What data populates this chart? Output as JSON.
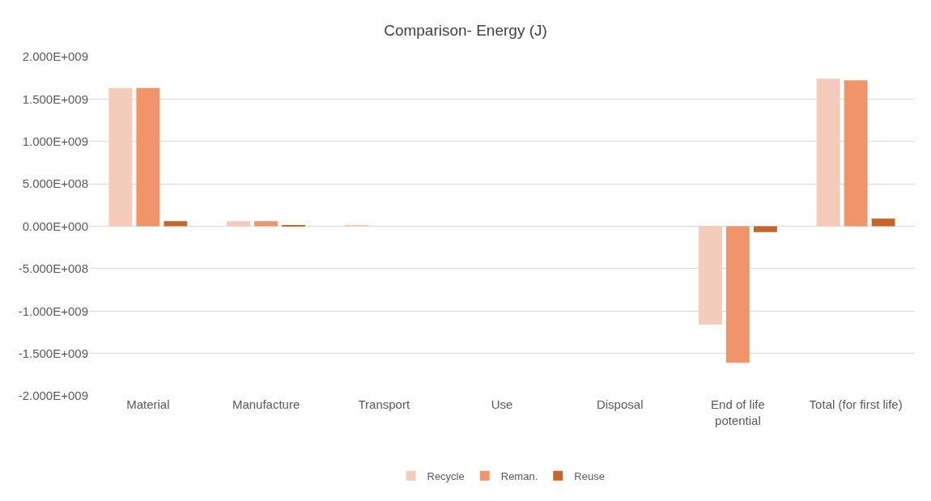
{
  "chart_data": {
    "type": "bar",
    "title": "Comparison- Energy (J)",
    "categories": [
      "Material",
      "Manufacture",
      "Transport",
      "Use",
      "Disposal",
      "End of life potential",
      "Total (for first life)"
    ],
    "series": [
      {
        "name": "Recycle",
        "color": "#f5cbbc",
        "values": [
          1630000000.0,
          60000000.0,
          10000000.0,
          0,
          0,
          -1160000000.0,
          1740000000.0
        ]
      },
      {
        "name": "Reman.",
        "color": "#f0956a",
        "values": [
          1630000000.0,
          60000000.0,
          0,
          0,
          0,
          -1610000000.0,
          1720000000.0
        ]
      },
      {
        "name": "Reuse",
        "color": "#c8652b",
        "values": [
          60000000.0,
          10000000.0,
          0,
          0,
          0,
          -70000000.0,
          90000000.0
        ]
      }
    ],
    "ylim": [
      -2000000000.0,
      2000000000.0
    ],
    "yticks": [
      {
        "value": -2000000000.0,
        "label": "-2.000E+009"
      },
      {
        "value": -1500000000.0,
        "label": "-1.500E+009"
      },
      {
        "value": -1000000000.0,
        "label": "-1.000E+009"
      },
      {
        "value": -500000000.0,
        "label": "-5.000E+008"
      },
      {
        "value": 0,
        "label": "0.000E+000"
      },
      {
        "value": 500000000.0,
        "label": "5.000E+008"
      },
      {
        "value": 1000000000.0,
        "label": "1.000E+009"
      },
      {
        "value": 1500000000.0,
        "label": "1.500E+009"
      },
      {
        "value": 2000000000.0,
        "label": "2.000E+009"
      }
    ],
    "grid": "y",
    "legend": "bottom"
  }
}
